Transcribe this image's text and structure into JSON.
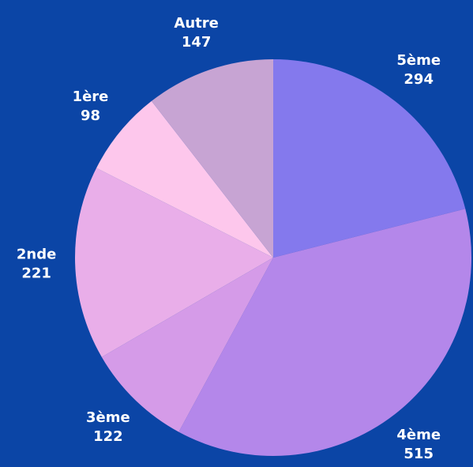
{
  "chart_data": {
    "type": "pie",
    "categories": [
      "5ème",
      "4ème",
      "3ème",
      "2nde",
      "1ère",
      "Autre"
    ],
    "values": [
      294,
      515,
      122,
      221,
      98,
      147
    ],
    "colors": [
      "#8479ed",
      "#b487ea",
      "#d59be8",
      "#e9aee9",
      "#fdc7ec",
      "#c7a4d3"
    ]
  }
}
